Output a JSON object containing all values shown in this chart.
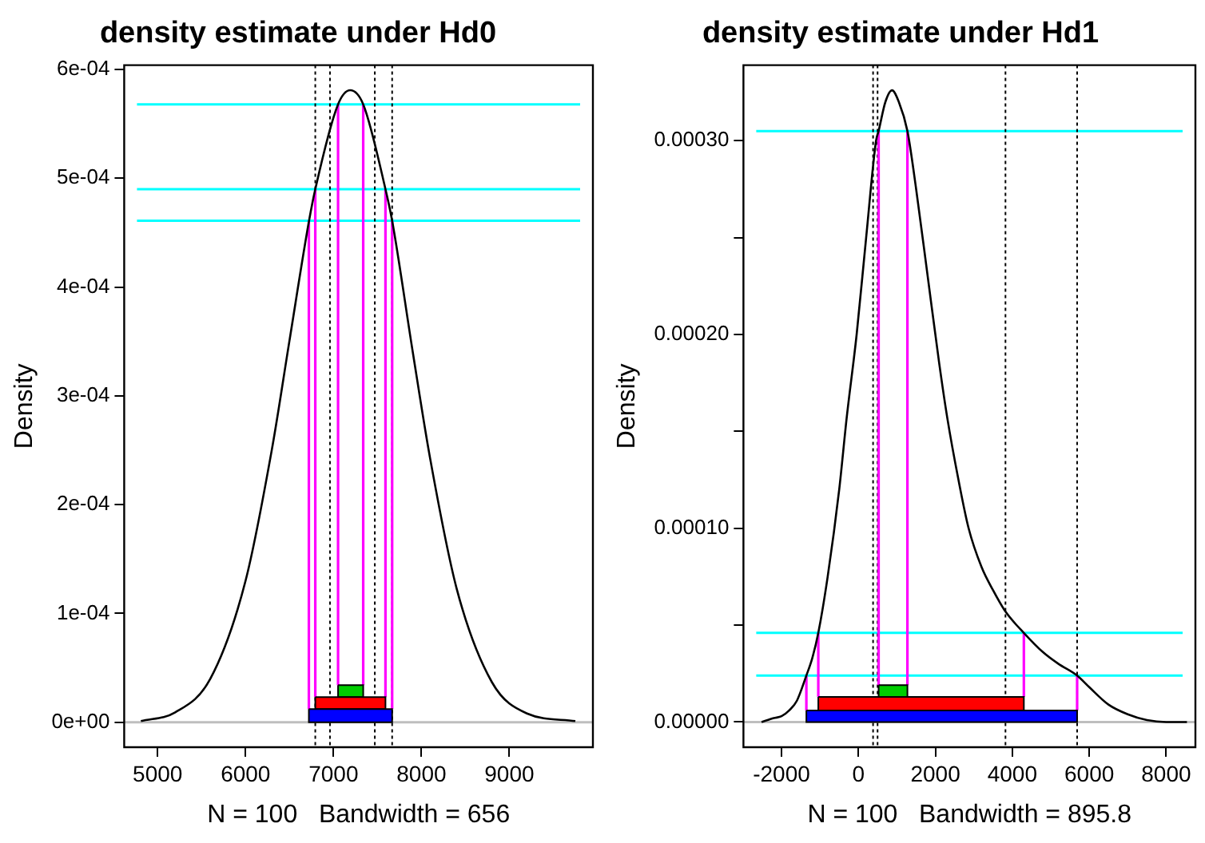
{
  "chart_data": [
    {
      "type": "line",
      "title": "density estimate under Hd0",
      "xlabel": "N = 100   Bandwidth = 656",
      "ylabel": "Density",
      "grid": false,
      "legend": false,
      "marker": "none",
      "line_style": "solid",
      "xlim": [
        4620,
        9950
      ],
      "ylim": [
        -2.3e-05,
        0.000604
      ],
      "xticks": [
        5000,
        6000,
        7000,
        8000,
        9000
      ],
      "yticks": [
        {
          "value": 0,
          "label": "0e+00"
        },
        {
          "value": 0.0001,
          "label": "1e-04"
        },
        {
          "value": 0.0002,
          "label": "2e-04"
        },
        {
          "value": 0.0003,
          "label": "3e-04"
        },
        {
          "value": 0.0004,
          "label": "4e-04"
        },
        {
          "value": 0.0005,
          "label": "5e-04"
        },
        {
          "value": 0.0006,
          "label": "6e-04"
        }
      ],
      "series": [
        {
          "type": "line",
          "color": "#000000",
          "x": [
            4810,
            5200,
            5600,
            6000,
            6300,
            6500,
            6720,
            6793,
            7052,
            7190,
            7338,
            7591,
            7667,
            7900,
            8100,
            8400,
            8800,
            9200,
            9750
          ],
          "values": [
            1e-06,
            9e-06,
            4e-05,
            0.00013,
            0.000251,
            0.000351,
            0.00046,
            0.00049,
            0.000568,
            0.000581,
            0.000568,
            0.00049,
            0.000461,
            0.000341,
            0.000242,
            0.000123,
            3.7e-05,
            8e-06,
            1e-06
          ]
        },
        {
          "type": "line",
          "color": "#ff00ff",
          "x": [
            6720,
            6720
          ],
          "values": [
            1.2e-05,
            0.000461
          ]
        },
        {
          "type": "line",
          "color": "#ff00ff",
          "x": [
            6793,
            6793
          ],
          "values": [
            2.3e-05,
            0.00049
          ]
        },
        {
          "type": "line",
          "color": "#ff00ff",
          "x": [
            7052,
            7052
          ],
          "values": [
            3.4e-05,
            0.000568
          ]
        },
        {
          "type": "line",
          "color": "#ff00ff",
          "x": [
            7338,
            7338
          ],
          "values": [
            3.4e-05,
            0.000568
          ]
        },
        {
          "type": "line",
          "color": "#ff00ff",
          "x": [
            7591,
            7591
          ],
          "values": [
            2.3e-05,
            0.00049
          ]
        },
        {
          "type": "line",
          "color": "#ff00ff",
          "x": [
            7667,
            7667
          ],
          "values": [
            1.2e-05,
            0.000461
          ]
        },
        {
          "type": "area",
          "color": "#0000ff",
          "x": [
            6720,
            7667
          ],
          "values": [
            1.2e-05,
            1.2e-05
          ]
        },
        {
          "type": "area",
          "color": "#ff0000",
          "x": [
            6793,
            7591
          ],
          "values": [
            2.3e-05,
            2.3e-05
          ]
        },
        {
          "type": "area",
          "color": "#00cd00",
          "x": [
            7052,
            7338
          ],
          "values": [
            3.4e-05,
            3.4e-05
          ]
        }
      ],
      "ref_lines": [
        {
          "axis": "y",
          "value": 0,
          "color": "#bebebe",
          "line_style": "solid"
        },
        {
          "axis": "y",
          "value": 0.000568,
          "color": "#00ffff",
          "line_style": "solid"
        },
        {
          "axis": "y",
          "value": 0.00049,
          "color": "#00ffff",
          "line_style": "solid"
        },
        {
          "axis": "y",
          "value": 0.000461,
          "color": "#00ffff",
          "line_style": "solid"
        },
        {
          "axis": "x",
          "value": 6793,
          "color": "#000000",
          "line_style": "dotted"
        },
        {
          "axis": "x",
          "value": 6960,
          "color": "#000000",
          "line_style": "dotted"
        },
        {
          "axis": "x",
          "value": 7470,
          "color": "#000000",
          "line_style": "dotted"
        },
        {
          "axis": "x",
          "value": 7667,
          "color": "#000000",
          "line_style": "dotted"
        }
      ]
    },
    {
      "type": "line",
      "title": "density estimate under Hd1",
      "xlabel": "N = 100   Bandwidth = 895.8",
      "ylabel": "Density",
      "grid": false,
      "legend": false,
      "marker": "none",
      "line_style": "solid",
      "xlim": [
        -2990,
        8760
      ],
      "ylim": [
        -1.3e-05,
        0.000339
      ],
      "xticks": [
        -2000,
        0,
        2000,
        4000,
        6000,
        8000
      ],
      "yticks": [
        {
          "value": 0,
          "label": "0.00000"
        },
        {
          "value": 5e-05,
          "label": null
        },
        {
          "value": 0.0001,
          "label": "0.00010"
        },
        {
          "value": 0.00015,
          "label": null
        },
        {
          "value": 0.0002,
          "label": "0.00020"
        },
        {
          "value": 0.00025,
          "label": null
        },
        {
          "value": 0.0003,
          "label": "0.00030"
        }
      ],
      "series": [
        {
          "type": "line",
          "color": "#000000",
          "x": [
            -2519,
            -2200,
            -2000,
            -1800,
            -1600,
            -1354,
            -1200,
            -1044,
            -800,
            -500,
            -306,
            -47,
            200,
            458,
            524,
            700,
            873,
            1050,
            1273,
            1500,
            1800,
            2100,
            2309,
            2600,
            2864,
            3200,
            3500,
            3822,
            4300,
            4800,
            5200,
            5685,
            6000,
            6500,
            7000,
            7500,
            8000,
            8540
          ],
          "values": [
            0,
            2e-06,
            3e-06,
            6e-06,
            1.1e-05,
            2.4e-05,
            3.3e-05,
            4.6e-05,
            7.5e-05,
            0.00012,
            0.000157,
            0.0002,
            0.00025,
            0.0003,
            0.000305,
            0.00032,
            0.000326,
            0.00032,
            0.000305,
            0.000275,
            0.00023,
            0.000185,
            0.000157,
            0.000125,
            0.0001,
            8e-05,
            6.8e-05,
            5.7e-05,
            4.6e-05,
            3.6e-05,
            3e-05,
            2.4e-05,
            1.8e-05,
            9e-06,
            4e-06,
            1e-06,
            0,
            0
          ]
        },
        {
          "type": "line",
          "color": "#ff00ff",
          "x": [
            -1354,
            -1354
          ],
          "values": [
            6e-06,
            2.4e-05
          ]
        },
        {
          "type": "line",
          "color": "#ff00ff",
          "x": [
            -1044,
            -1044
          ],
          "values": [
            1.3e-05,
            4.6e-05
          ]
        },
        {
          "type": "line",
          "color": "#ff00ff",
          "x": [
            524,
            524
          ],
          "values": [
            1.9e-05,
            0.000305
          ]
        },
        {
          "type": "line",
          "color": "#ff00ff",
          "x": [
            1273,
            1273
          ],
          "values": [
            1.9e-05,
            0.000305
          ]
        },
        {
          "type": "line",
          "color": "#ff00ff",
          "x": [
            4300,
            4300
          ],
          "values": [
            1.3e-05,
            4.6e-05
          ]
        },
        {
          "type": "line",
          "color": "#ff00ff",
          "x": [
            5685,
            5685
          ],
          "values": [
            6e-06,
            2.4e-05
          ]
        },
        {
          "type": "area",
          "color": "#0000ff",
          "x": [
            -1354,
            5685
          ],
          "values": [
            6e-06,
            6e-06
          ]
        },
        {
          "type": "area",
          "color": "#ff0000",
          "x": [
            -1044,
            4300
          ],
          "values": [
            1.3e-05,
            1.3e-05
          ]
        },
        {
          "type": "area",
          "color": "#00cd00",
          "x": [
            524,
            1273
          ],
          "values": [
            1.9e-05,
            1.9e-05
          ]
        }
      ],
      "ref_lines": [
        {
          "axis": "y",
          "value": 0,
          "color": "#bebebe",
          "line_style": "solid"
        },
        {
          "axis": "y",
          "value": 0.000305,
          "color": "#00ffff",
          "line_style": "solid"
        },
        {
          "axis": "y",
          "value": 4.6e-05,
          "color": "#00ffff",
          "line_style": "solid"
        },
        {
          "axis": "y",
          "value": 2.4e-05,
          "color": "#00ffff",
          "line_style": "solid"
        },
        {
          "axis": "x",
          "value": 380,
          "color": "#000000",
          "line_style": "dotted"
        },
        {
          "axis": "x",
          "value": 497,
          "color": "#000000",
          "line_style": "dotted"
        },
        {
          "axis": "x",
          "value": 3822,
          "color": "#000000",
          "line_style": "dotted"
        },
        {
          "axis": "x",
          "value": 5685,
          "color": "#000000",
          "line_style": "dotted"
        }
      ]
    }
  ]
}
